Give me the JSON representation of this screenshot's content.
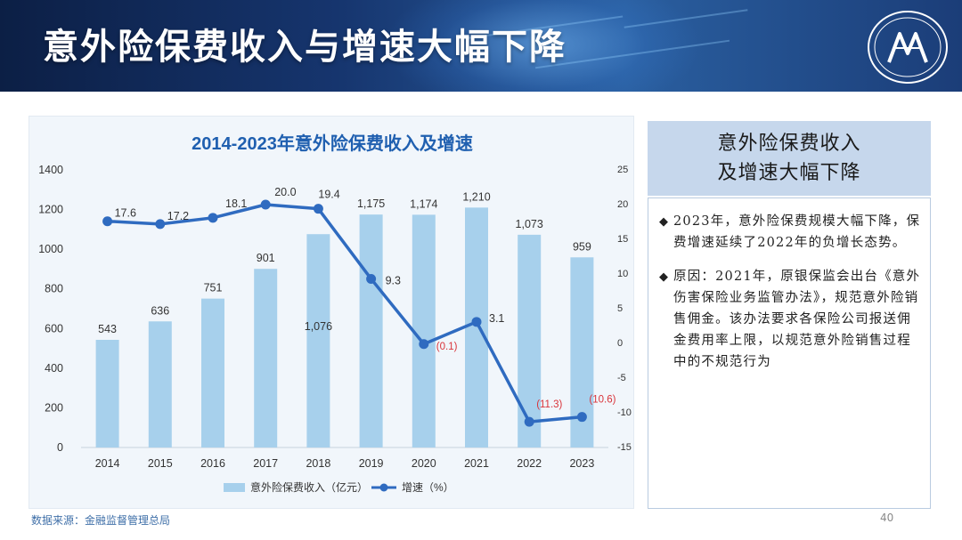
{
  "banner": {
    "title": "意外险保费收入与增速大幅下降"
  },
  "summary": {
    "lines": [
      "意外险保费收入",
      "及增速大幅下降"
    ]
  },
  "bullets": [
    {
      "mark": "◆",
      "text": "2023年，意外险保费规模大幅下降，保费增速延续了2022年的负增长态势。"
    },
    {
      "mark": "◆",
      "text": "原因：2021年，原银保监会出台《意外伤害保险业务监管办法》，规范意外险销售佣金。该办法要求各保险公司报送佣金费用率上限，以规范意外险销售过程中的不规范行为"
    }
  ],
  "footer": {
    "source": "数据来源：金融监督管理总局",
    "page": "40"
  },
  "colors": {
    "bar": "#a7d0ec",
    "line": "#2f6bc0",
    "title": "#2060b0",
    "negative_label": "#d9343a"
  },
  "chart_data": {
    "type": "bar",
    "title": "2014-2023年意外险保费收入及增速",
    "categories": [
      "2014",
      "2015",
      "2016",
      "2017",
      "2018",
      "2019",
      "2020",
      "2021",
      "2022",
      "2023"
    ],
    "series": [
      {
        "name": "意外险保费收入（亿元）",
        "type": "bar",
        "axis": "left",
        "values": [
          543,
          636,
          751,
          901,
          1076,
          1175,
          1174,
          1210,
          1073,
          959
        ],
        "labels": [
          "543",
          "636",
          "751",
          "901",
          "1,076",
          "1,175",
          "1,174",
          "1,210",
          "1,073",
          "959"
        ]
      },
      {
        "name": "增速（%）",
        "type": "line",
        "axis": "right",
        "values": [
          17.6,
          17.2,
          18.1,
          20.0,
          19.4,
          9.3,
          -0.1,
          3.1,
          -11.3,
          -10.6
        ],
        "labels": [
          "17.6",
          "17.2",
          "18.1",
          "20.0",
          "19.4",
          "9.3",
          "(0.1)",
          "3.1",
          "(11.3)",
          "(10.6)"
        ]
      }
    ],
    "y_left": {
      "ticks": [
        0,
        200,
        400,
        600,
        800,
        1000,
        1200,
        1400
      ],
      "ylim": [
        0,
        1400
      ]
    },
    "y_right": {
      "ticks": [
        -15,
        -10,
        -5,
        0,
        5,
        10,
        15,
        20,
        25
      ],
      "ylim": [
        -15,
        25
      ]
    },
    "legend_position": "bottom",
    "grid": false
  }
}
